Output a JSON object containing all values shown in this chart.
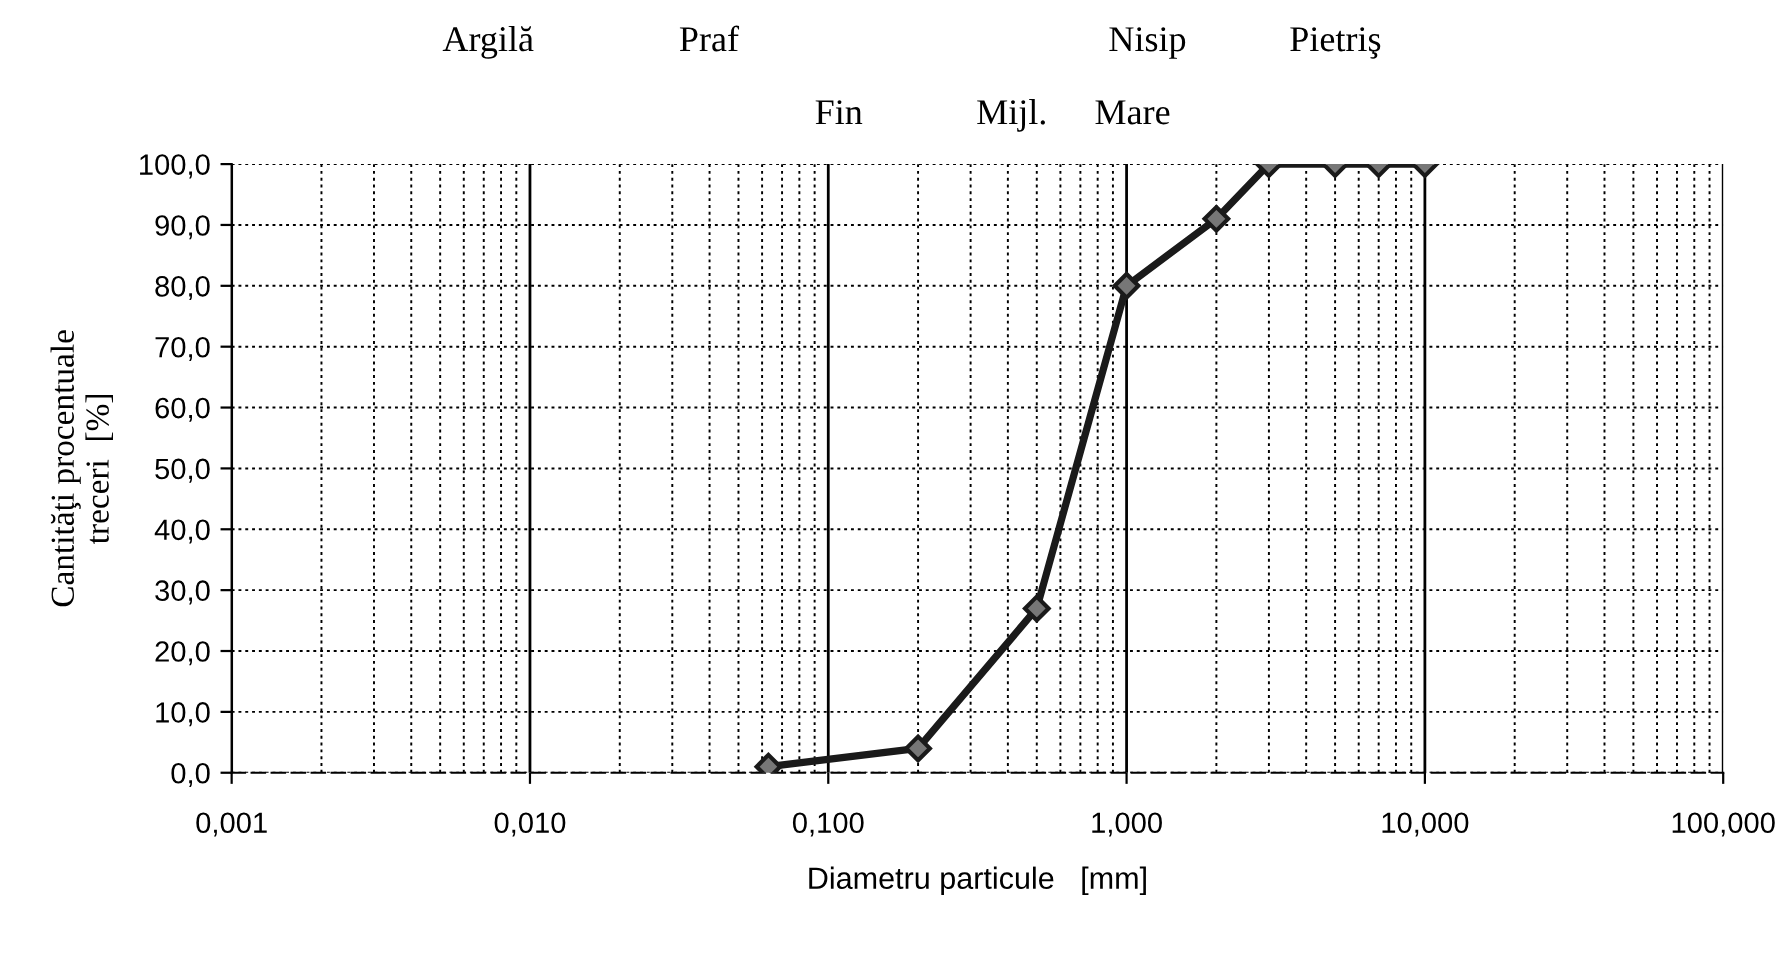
{
  "chart_data": {
    "type": "line",
    "xlabel": "Diametru particule   [mm]",
    "ylabel": "Cantităţi procentuale\ntreceri  [%]",
    "x": [
      0.063,
      0.2,
      0.5,
      1.0,
      2.0,
      3.0,
      5.0,
      7.0,
      10.0
    ],
    "series": [
      {
        "color": "#1a1a1a",
        "values": [
          1,
          4,
          27,
          80,
          91,
          100,
          100,
          100,
          100
        ]
      }
    ],
    "log": "x",
    "marker": "diamond",
    "line_style": "solid",
    "grid": true,
    "xlim": [
      0.001,
      100
    ],
    "xticks": [
      {
        "value": 0.001,
        "label": "0,001"
      },
      {
        "value": 0.01,
        "label": "0,010"
      },
      {
        "value": 0.1,
        "label": "0,100"
      },
      {
        "value": 1,
        "label": "1,000"
      },
      {
        "value": 10,
        "label": "10,000"
      },
      {
        "value": 100,
        "label": "100,000"
      }
    ],
    "ylim": [
      0,
      100
    ],
    "yticks": [
      {
        "value": 0,
        "label": "0,0"
      },
      {
        "value": 10,
        "label": "10,0"
      },
      {
        "value": 20,
        "label": "20,0"
      },
      {
        "value": 30,
        "label": "30,0"
      },
      {
        "value": 40,
        "label": "40,0"
      },
      {
        "value": 50,
        "label": "50,0"
      },
      {
        "value": 60,
        "label": "60,0"
      },
      {
        "value": 70,
        "label": "70,0"
      },
      {
        "value": 80,
        "label": "80,0"
      },
      {
        "value": 90,
        "label": "90,0"
      },
      {
        "value": 100,
        "label": "100,0"
      }
    ],
    "annotations": [
      "Argilă",
      "Praf",
      "Nisip",
      "Pietriş",
      "Fin",
      "Mijl.",
      "Mare"
    ]
  }
}
